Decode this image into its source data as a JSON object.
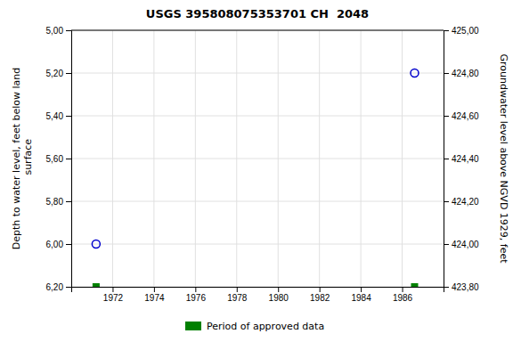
{
  "chart_data": {
    "type": "scatter",
    "title": "USGS 395808075353701 CH  2048",
    "x": [
      1971.2,
      1986.6
    ],
    "series": [
      {
        "color": "#0000cc",
        "marker": "open-circle",
        "values": [
          6.0,
          5.2
        ]
      },
      {
        "name": "Period of approved data",
        "color": "#008000",
        "marker": "square",
        "values": [
          6.2,
          6.2
        ]
      }
    ],
    "xlim": [
      1970.0,
      1988.0
    ],
    "xticks": [
      1972,
      1974,
      1976,
      1978,
      1980,
      1982,
      1984,
      1986
    ],
    "ylim": [
      6.2,
      5.0
    ],
    "yticks": [
      {
        "value": 5.0,
        "label": "5,00"
      },
      {
        "value": 5.2,
        "label": "5,20"
      },
      {
        "value": 5.4,
        "label": "5,40"
      },
      {
        "value": 5.6,
        "label": "5,60"
      },
      {
        "value": 5.8,
        "label": "5,80"
      },
      {
        "value": 6.0,
        "label": "6,00"
      },
      {
        "value": 6.2,
        "label": "6,20"
      }
    ],
    "y2lim": [
      423.8,
      425.0
    ],
    "y2ticks": [
      {
        "value": 423.8,
        "label": "423,80"
      },
      {
        "value": 424.0,
        "label": "424,00"
      },
      {
        "value": 424.2,
        "label": "424,20"
      },
      {
        "value": 424.4,
        "label": "424,40"
      },
      {
        "value": 424.6,
        "label": "424,60"
      },
      {
        "value": 424.8,
        "label": "424,80"
      },
      {
        "value": 425.0,
        "label": "425,00"
      }
    ],
    "ylabel": "Depth to water level, feet below land\n surface",
    "y2label": "Groundwater level above NGVD 1929, feet",
    "grid": true,
    "legend": "bottom"
  }
}
